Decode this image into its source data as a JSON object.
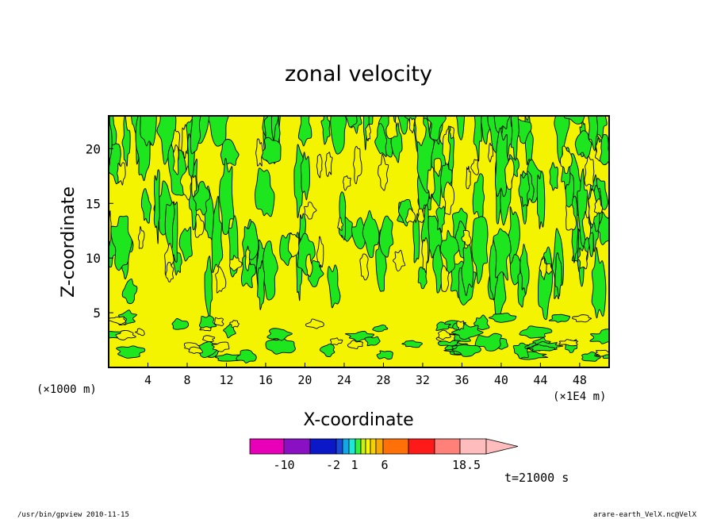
{
  "chart_data": {
    "type": "heatmap",
    "title": "zonal velocity",
    "xlabel": "X-coordinate",
    "ylabel": "Z-coordinate",
    "x_unit": "(×1000 m)",
    "x_unit_right": "(×1E4 m)",
    "x_ticks": [
      "4",
      "8",
      "12",
      "16",
      "20",
      "24",
      "28",
      "32",
      "36",
      "40",
      "44",
      "48"
    ],
    "y_ticks": [
      "5",
      "10",
      "15",
      "20"
    ],
    "xlim": [
      0,
      51
    ],
    "ylim": [
      0,
      23
    ],
    "colorbar": {
      "labels": [
        "-10",
        "-2",
        "1",
        "6",
        "18.5"
      ],
      "colors": [
        "#e800b8",
        "#8a10c4",
        "#0a18c8",
        "#1a4ad8",
        "#10a8e8",
        "#1ae8d8",
        "#30f040",
        "#c8f018",
        "#f8f800",
        "#f8d000",
        "#f8a800",
        "#ff7008",
        "#ff1a1a",
        "#ff8078",
        "#ffbcbc"
      ],
      "field_colors": {
        "green": "#1ee61e",
        "yellow": "#f4f400"
      }
    },
    "time_label": "t=21000 s",
    "footer_left": "/usr/bin/gpview  2010-11-15",
    "footer_right": "arare-earth_VelX.nc@VelX"
  }
}
